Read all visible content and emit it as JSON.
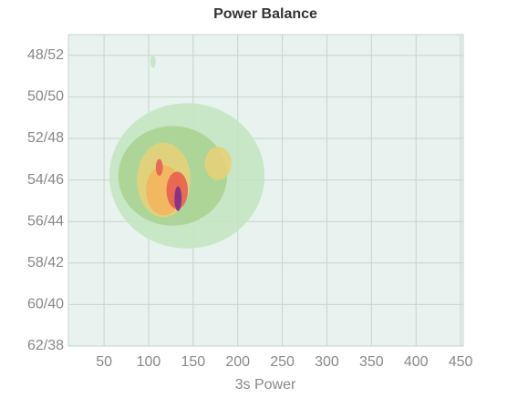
{
  "chart_data": {
    "type": "contour",
    "title": "Power Balance",
    "x_label": "3s Power",
    "xlim": [
      10,
      453
    ],
    "xticks": [
      50,
      100,
      150,
      200,
      250,
      300,
      350,
      400,
      450
    ],
    "ylim": [
      62,
      47
    ],
    "yticks": [
      {
        "value": 48,
        "label": "48/52"
      },
      {
        "value": 50,
        "label": "50/50"
      },
      {
        "value": 52,
        "label": "52/48"
      },
      {
        "value": 54,
        "label": "54/46"
      },
      {
        "value": 56,
        "label": "56/44"
      },
      {
        "value": 58,
        "label": "58/42"
      },
      {
        "value": 60,
        "label": "60/40"
      },
      {
        "value": 62,
        "label": "62/38"
      }
    ],
    "grid": true,
    "background": "#e8f2ee",
    "levels": [
      {
        "color": "#c4e5c2",
        "regions": [
          {
            "x": 143,
            "y": 53.8,
            "rx": 87,
            "ry": 3.5
          },
          {
            "x": 105,
            "y": 48.3,
            "rx": 3,
            "ry": 0.3
          }
        ]
      },
      {
        "color": "#a9d391",
        "regions": [
          {
            "x": 127,
            "y": 53.8,
            "rx": 61,
            "ry": 2.4
          }
        ]
      },
      {
        "color": "#e6d27a",
        "regions": [
          {
            "x": 117,
            "y": 54,
            "rx": 30,
            "ry": 1.8
          },
          {
            "x": 178,
            "y": 53.2,
            "rx": 15,
            "ry": 0.8
          }
        ]
      },
      {
        "color": "#f4b55e",
        "regions": [
          {
            "x": 117,
            "y": 54.5,
            "rx": 20,
            "ry": 1.2
          }
        ]
      },
      {
        "color": "#e8604f",
        "regions": [
          {
            "x": 132,
            "y": 54.5,
            "rx": 12,
            "ry": 0.9
          },
          {
            "x": 112,
            "y": 53.4,
            "rx": 4,
            "ry": 0.4
          }
        ]
      },
      {
        "color": "#7b2d8e",
        "regions": [
          {
            "x": 133,
            "y": 54.9,
            "rx": 4,
            "ry": 0.6
          }
        ]
      }
    ]
  }
}
